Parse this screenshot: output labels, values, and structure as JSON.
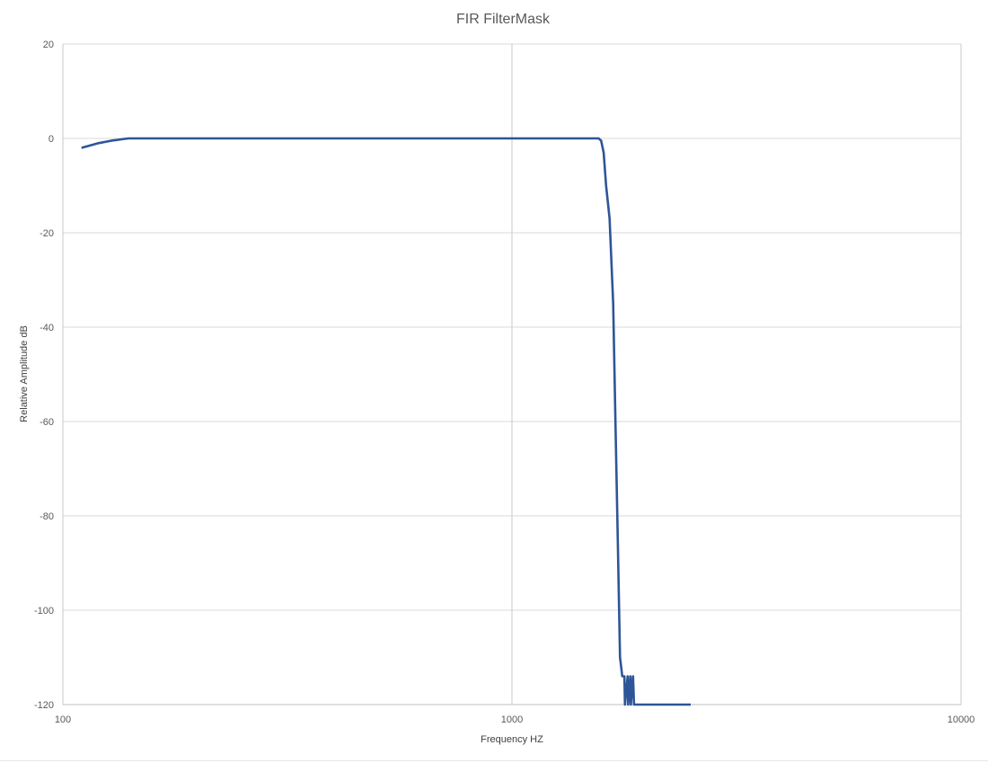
{
  "chart_data": {
    "type": "line",
    "title": "FIR FilterMask",
    "xlabel": "Frequency HZ",
    "ylabel": "Relative Amplitude dB",
    "x_scale": "log",
    "xlim": [
      100,
      10000
    ],
    "ylim": [
      -120,
      20
    ],
    "x_ticks": [
      100,
      1000,
      10000
    ],
    "x_tick_labels": [
      "100",
      "1000",
      "10000"
    ],
    "y_ticks": [
      20,
      0,
      -20,
      -40,
      -60,
      -80,
      -100,
      -120
    ],
    "y_tick_labels": [
      "20",
      "0",
      "-20",
      "-40",
      "-60",
      "-80",
      "-100",
      "-120"
    ],
    "grid": true,
    "legend": "none",
    "series": [
      {
        "color": "#2e5597",
        "x": [
          110,
          115,
          120,
          128,
          135,
          140,
          150,
          300,
          600,
          1000,
          1400,
          1560,
          1580,
          1600,
          1620,
          1650,
          1680,
          1700,
          1720,
          1740,
          1760,
          1780,
          1785,
          1810,
          1815,
          1835,
          1840,
          1860,
          1870,
          2000,
          2500
        ],
        "y": [
          -2,
          -1.5,
          -1,
          -0.5,
          -0.2,
          0,
          0,
          0,
          0,
          0,
          0,
          0,
          -0.5,
          -3,
          -10,
          -17,
          -35,
          -60,
          -85,
          -110,
          -114,
          -114,
          -120,
          -114,
          -120,
          -114,
          -120,
          -114,
          -120,
          -120,
          -120
        ]
      }
    ]
  }
}
